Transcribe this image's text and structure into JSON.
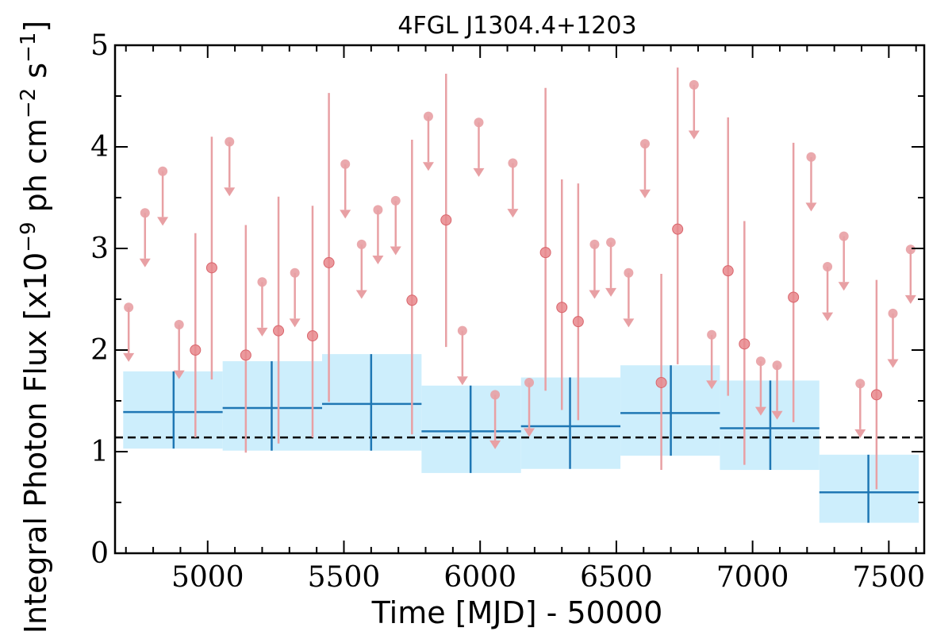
{
  "chart_data": {
    "type": "scatter",
    "title": "4FGL J1304.4+1203",
    "xlabel": "Time [MJD] - 50000",
    "ylabel_parts": {
      "prefix": "Integral Photon Flux [x10",
      "exp1": "−9",
      "mid": " ph cm",
      "exp2": "−2",
      "mid2": " s",
      "exp3": "−1",
      "suffix": "]"
    },
    "xlim": [
      4660,
      7630
    ],
    "ylim": [
      0,
      5
    ],
    "xticks": [
      5000,
      5500,
      6000,
      6500,
      7000,
      7500
    ],
    "yticks": [
      0,
      1,
      2,
      3,
      4,
      5
    ],
    "grid": false,
    "colors": {
      "band": "#cdeefc",
      "bin_line": "#1f77b4",
      "short_points": "#e8878c",
      "short_lines": "#e8a0a4",
      "reference_line": "#000000"
    },
    "reference_flux": 1.14,
    "long_bins": [
      {
        "x0": 4690,
        "x1": 5055,
        "center": 4875,
        "value": 1.39,
        "lo": 1.03,
        "hi": 1.79
      },
      {
        "x0": 5055,
        "x1": 5420,
        "center": 5235,
        "value": 1.43,
        "lo": 1.01,
        "hi": 1.89
      },
      {
        "x0": 5420,
        "x1": 5785,
        "center": 5600,
        "value": 1.47,
        "lo": 1.01,
        "hi": 1.96
      },
      {
        "x0": 5785,
        "x1": 6150,
        "center": 5965,
        "value": 1.2,
        "lo": 0.79,
        "hi": 1.65
      },
      {
        "x0": 6150,
        "x1": 6515,
        "center": 6330,
        "value": 1.25,
        "lo": 0.83,
        "hi": 1.73
      },
      {
        "x0": 6515,
        "x1": 6880,
        "center": 6700,
        "value": 1.38,
        "lo": 0.96,
        "hi": 1.85
      },
      {
        "x0": 6880,
        "x1": 7245,
        "center": 7065,
        "value": 1.23,
        "lo": 0.82,
        "hi": 1.7
      },
      {
        "x0": 7245,
        "x1": 7610,
        "center": 7425,
        "value": 0.6,
        "lo": 0.3,
        "hi": 0.97
      }
    ],
    "short_detections": [
      {
        "x": 4955,
        "y": 2.0,
        "lo": 1.14,
        "hi": 3.15
      },
      {
        "x": 5015,
        "y": 2.81,
        "lo": 1.71,
        "hi": 4.1
      },
      {
        "x": 5140,
        "y": 1.95,
        "lo": 0.99,
        "hi": 3.23
      },
      {
        "x": 5260,
        "y": 2.19,
        "lo": 1.08,
        "hi": 3.51
      },
      {
        "x": 5385,
        "y": 2.14,
        "lo": 1.14,
        "hi": 3.42
      },
      {
        "x": 5445,
        "y": 2.86,
        "lo": 1.49,
        "hi": 4.53
      },
      {
        "x": 5750,
        "y": 2.49,
        "lo": 1.17,
        "hi": 4.07
      },
      {
        "x": 5875,
        "y": 3.28,
        "lo": 2.03,
        "hi": 4.72
      },
      {
        "x": 6240,
        "y": 2.96,
        "lo": 1.6,
        "hi": 4.58
      },
      {
        "x": 6300,
        "y": 2.42,
        "lo": 1.41,
        "hi": 3.68
      },
      {
        "x": 6360,
        "y": 2.28,
        "lo": 1.31,
        "hi": 3.64
      },
      {
        "x": 6665,
        "y": 1.68,
        "lo": 0.82,
        "hi": 2.75
      },
      {
        "x": 6725,
        "y": 3.19,
        "lo": 1.86,
        "hi": 4.78
      },
      {
        "x": 6910,
        "y": 2.78,
        "lo": 1.55,
        "hi": 4.29
      },
      {
        "x": 6970,
        "y": 2.06,
        "lo": 0.87,
        "hi": 3.27
      },
      {
        "x": 7150,
        "y": 2.52,
        "lo": 1.29,
        "hi": 4.04
      },
      {
        "x": 7455,
        "y": 1.56,
        "lo": 0.63,
        "hi": 2.69
      }
    ],
    "short_upper_limits": [
      {
        "x": 4710,
        "y": 2.42
      },
      {
        "x": 4770,
        "y": 3.35
      },
      {
        "x": 4835,
        "y": 3.76
      },
      {
        "x": 4895,
        "y": 2.25
      },
      {
        "x": 5080,
        "y": 4.05
      },
      {
        "x": 5200,
        "y": 2.67
      },
      {
        "x": 5320,
        "y": 2.76
      },
      {
        "x": 5505,
        "y": 3.83
      },
      {
        "x": 5565,
        "y": 3.04
      },
      {
        "x": 5625,
        "y": 3.38
      },
      {
        "x": 5690,
        "y": 3.47
      },
      {
        "x": 5810,
        "y": 4.3
      },
      {
        "x": 5935,
        "y": 2.19
      },
      {
        "x": 5995,
        "y": 4.24
      },
      {
        "x": 6055,
        "y": 1.56
      },
      {
        "x": 6120,
        "y": 3.84
      },
      {
        "x": 6180,
        "y": 1.68
      },
      {
        "x": 6420,
        "y": 3.04
      },
      {
        "x": 6480,
        "y": 3.06
      },
      {
        "x": 6545,
        "y": 2.76
      },
      {
        "x": 6605,
        "y": 4.03
      },
      {
        "x": 6785,
        "y": 4.61
      },
      {
        "x": 6850,
        "y": 2.15
      },
      {
        "x": 7030,
        "y": 1.89
      },
      {
        "x": 7090,
        "y": 1.85
      },
      {
        "x": 7215,
        "y": 3.9
      },
      {
        "x": 7275,
        "y": 2.82
      },
      {
        "x": 7335,
        "y": 3.12
      },
      {
        "x": 7395,
        "y": 1.67
      },
      {
        "x": 7515,
        "y": 2.36
      },
      {
        "x": 7580,
        "y": 2.99
      }
    ]
  }
}
